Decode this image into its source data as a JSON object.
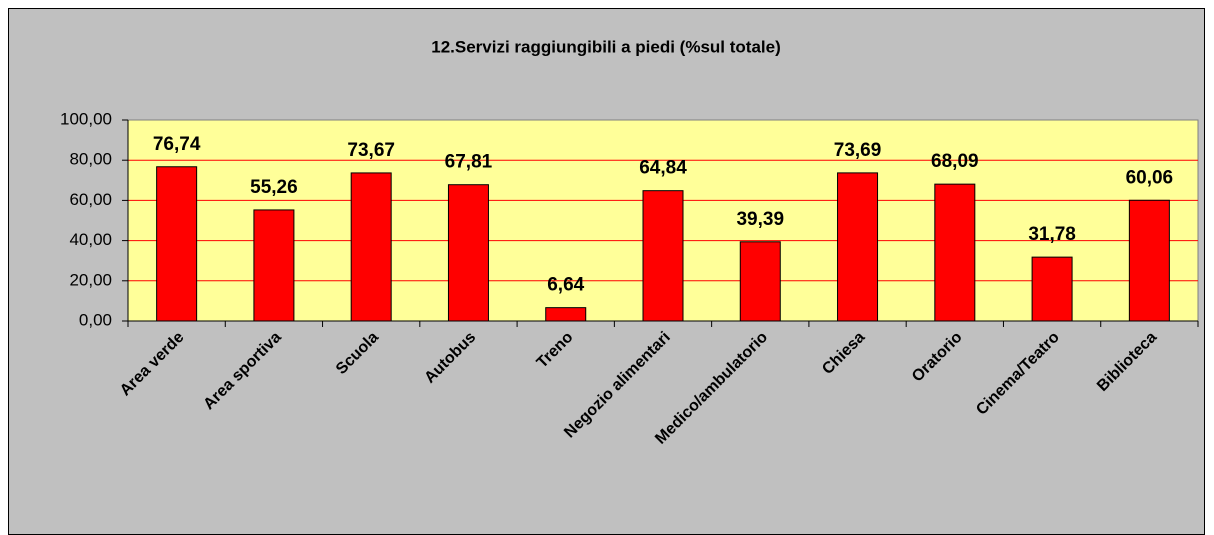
{
  "chart_data": {
    "type": "bar",
    "title": "12.Servizi raggiungibili a piedi (%sul totale)",
    "categories": [
      "Area verde",
      "Area sportiva",
      "Scuola",
      "Autobus",
      "Treno",
      "Negozio alimentari",
      "Medico/ambulatorio",
      "Chiesa",
      "Oratorio",
      "Cinema/Teatro",
      "Biblioteca"
    ],
    "values": [
      76.74,
      55.26,
      73.67,
      67.81,
      6.64,
      64.84,
      39.39,
      73.69,
      68.09,
      31.78,
      60.06
    ],
    "value_labels": [
      "76,74",
      "55,26",
      "73,67",
      "67,81",
      "6,64",
      "64,84",
      "39,39",
      "73,69",
      "68,09",
      "31,78",
      "60,06"
    ],
    "color": "#ff0000",
    "ylim": [
      0,
      100
    ],
    "yticks": [
      {
        "value": 0,
        "label": "0,00"
      },
      {
        "value": 20,
        "label": "20,00"
      },
      {
        "value": 40,
        "label": "40,00"
      },
      {
        "value": 60,
        "label": "60,00"
      },
      {
        "value": 80,
        "label": "80,00"
      },
      {
        "value": 100,
        "label": "100,00"
      }
    ],
    "grid": true
  }
}
